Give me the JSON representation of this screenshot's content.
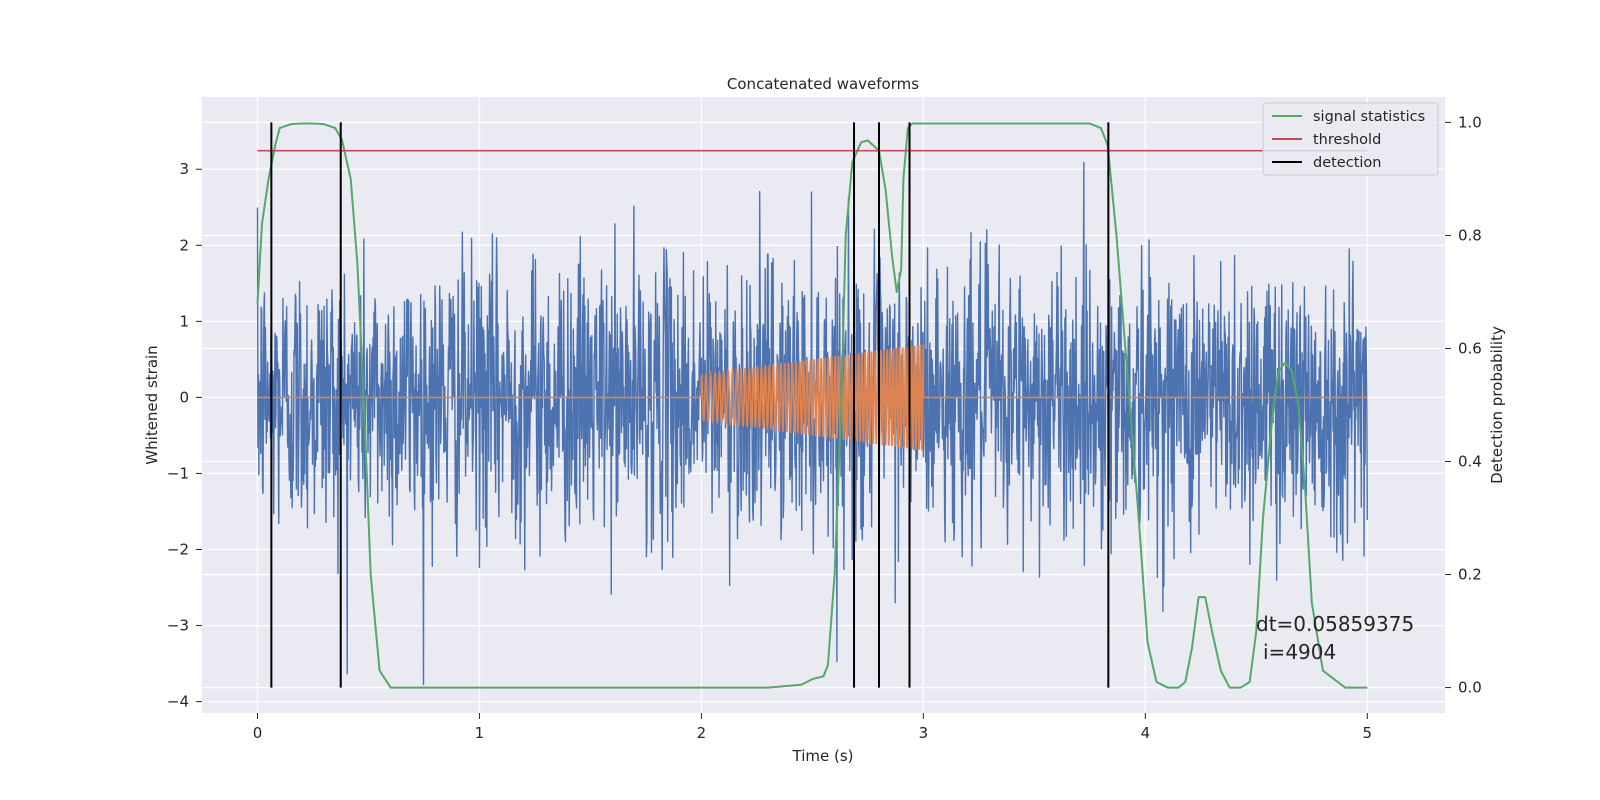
{
  "chart_data": {
    "type": "line",
    "title": "Concatenated waveforms",
    "xlabel": "Time (s)",
    "ylabel_left": "Whitened strain",
    "ylabel_right": "Detection probability",
    "xlim": [
      -0.25,
      5.35
    ],
    "ylim_left": [
      -4.15,
      3.95
    ],
    "ylim_right": [
      -0.045,
      1.045
    ],
    "x_ticks": [
      0,
      1,
      2,
      3,
      4,
      5
    ],
    "y_ticks_left": [
      -4,
      -3,
      -2,
      -1,
      0,
      1,
      2,
      3
    ],
    "y_ticks_right": [
      0.0,
      0.2,
      0.4,
      0.6,
      0.8,
      1.0
    ],
    "grid": true,
    "legend_position": "top-right",
    "colors": {
      "background": "#eaeaf2",
      "grid": "#ffffff",
      "strain": "#4c72b0",
      "injected": "#dd8452",
      "signal_statistics": "#55a868",
      "threshold": "#c44e52",
      "detection": "#000000"
    },
    "series": [
      {
        "name": "",
        "axis": "left",
        "kind": "noise",
        "x_range": [
          0,
          5
        ],
        "mean": 0,
        "std": 0.9,
        "max": 3.6,
        "min": -3.85
      },
      {
        "name": "",
        "axis": "left",
        "kind": "chirp",
        "x_range": [
          2,
          3
        ],
        "amplitude_start": 0.3,
        "amplitude_end": 0.7,
        "value_outside": 0
      },
      {
        "name": "signal statistics",
        "axis": "right",
        "x": [
          0,
          0.02,
          0.05,
          0.08,
          0.1,
          0.15,
          0.2,
          0.25,
          0.3,
          0.35,
          0.38,
          0.42,
          0.45,
          0.48,
          0.51,
          0.55,
          0.6,
          1.0,
          1.5,
          2.0,
          2.3,
          2.45,
          2.5,
          2.55,
          2.57,
          2.6,
          2.63,
          2.65,
          2.68,
          2.72,
          2.75,
          2.8,
          2.83,
          2.86,
          2.88,
          2.9,
          2.91,
          2.93,
          2.95,
          2.97,
          3.0,
          3.2,
          3.5,
          3.75,
          3.8,
          3.83,
          3.87,
          3.92,
          3.97,
          4.01,
          4.05,
          4.1,
          4.15,
          4.18,
          4.21,
          4.24,
          4.27,
          4.3,
          4.34,
          4.38,
          4.43,
          4.47,
          4.5,
          4.53,
          4.57,
          4.6,
          4.63,
          4.66,
          4.69,
          4.72,
          4.75,
          4.8,
          4.9,
          5.0
        ],
        "values": [
          0.68,
          0.82,
          0.9,
          0.96,
          0.99,
          0.997,
          0.998,
          0.998,
          0.997,
          0.99,
          0.97,
          0.9,
          0.75,
          0.5,
          0.2,
          0.03,
          0.0,
          0.0,
          0.0,
          0.0,
          0.0,
          0.005,
          0.015,
          0.02,
          0.04,
          0.2,
          0.5,
          0.8,
          0.93,
          0.965,
          0.968,
          0.95,
          0.88,
          0.76,
          0.7,
          0.74,
          0.9,
          0.99,
          0.998,
          0.998,
          0.998,
          0.998,
          0.998,
          0.998,
          0.99,
          0.96,
          0.8,
          0.55,
          0.3,
          0.08,
          0.01,
          0.0,
          0.0,
          0.01,
          0.07,
          0.16,
          0.16,
          0.1,
          0.03,
          0.0,
          0.0,
          0.01,
          0.1,
          0.3,
          0.47,
          0.56,
          0.575,
          0.56,
          0.5,
          0.35,
          0.15,
          0.03,
          0.0,
          0.0
        ]
      },
      {
        "name": "threshold",
        "axis": "right",
        "x": [
          0,
          5
        ],
        "values": [
          0.95,
          0.95
        ]
      },
      {
        "name": "detection",
        "axis": "right",
        "kind": "vertical-lines",
        "x": [
          0.0625,
          0.375,
          2.6875,
          2.8,
          2.9375,
          3.8333
        ],
        "range": [
          0,
          1
        ]
      }
    ],
    "annotations": {
      "dt": "dt=0.05859375",
      "i": "i=4904"
    }
  }
}
